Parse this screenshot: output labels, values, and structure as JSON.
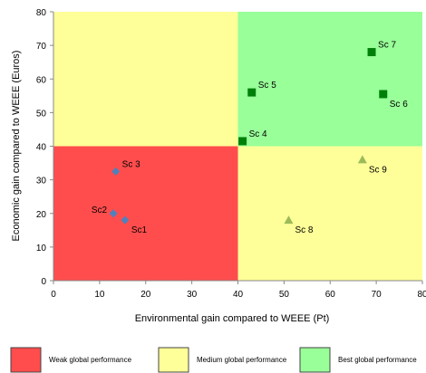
{
  "chart_data": {
    "type": "scatter",
    "title": "",
    "xlabel": "Environmental gain compared to WEEE (Pt)",
    "ylabel": "Economic gain compared to WEEE (Euros)",
    "xlim": [
      0,
      80
    ],
    "ylim": [
      0,
      80
    ],
    "x_ticks": [
      0,
      10,
      20,
      30,
      40,
      50,
      60,
      70,
      80
    ],
    "y_ticks": [
      0,
      10,
      20,
      30,
      40,
      50,
      60,
      70,
      80
    ],
    "grid": false,
    "regions": [
      {
        "name": "Weak global performance",
        "x": [
          0,
          40
        ],
        "y": [
          0,
          40
        ],
        "color": "#ff4d4d"
      },
      {
        "name": "Medium global performance",
        "x": [
          0,
          40
        ],
        "y": [
          40,
          80
        ],
        "color": "#ffff99"
      },
      {
        "name": "Medium global performance",
        "x": [
          40,
          80
        ],
        "y": [
          0,
          40
        ],
        "color": "#ffff99"
      },
      {
        "name": "Best global performance",
        "x": [
          40,
          80
        ],
        "y": [
          40,
          80
        ],
        "color": "#99ff99"
      }
    ],
    "legend": {
      "placement": "bottom",
      "entries": [
        {
          "label": "Weak global performance",
          "color": "#ff4d4d"
        },
        {
          "label": "Medium global performance",
          "color": "#ffff99"
        },
        {
          "label": "Best global performance",
          "color": "#99ff99"
        }
      ]
    },
    "points": [
      {
        "label": "Sc1",
        "x": 15.5,
        "y": 18,
        "marker": "diamond",
        "color": "#4f81bd",
        "label_pos": "below-right"
      },
      {
        "label": "Sc2",
        "x": 13,
        "y": 20,
        "marker": "diamond",
        "color": "#4f81bd",
        "label_pos": "left"
      },
      {
        "label": "Sc 3",
        "x": 13.5,
        "y": 32.5,
        "marker": "diamond",
        "color": "#4f81bd",
        "label_pos": "above-right"
      },
      {
        "label": "Sc 4",
        "x": 41,
        "y": 41.5,
        "marker": "square",
        "color": "#00800a",
        "label_pos": "above-right"
      },
      {
        "label": "Sc 5",
        "x": 43,
        "y": 56,
        "marker": "square",
        "color": "#00800a",
        "label_pos": "above-right"
      },
      {
        "label": "Sc 6",
        "x": 71.5,
        "y": 55.5,
        "marker": "square",
        "color": "#00800a",
        "label_pos": "below-right"
      },
      {
        "label": "Sc 7",
        "x": 69,
        "y": 68,
        "marker": "square",
        "color": "#00800a",
        "label_pos": "above-right"
      },
      {
        "label": "Sc 8",
        "x": 51,
        "y": 18,
        "marker": "triangle",
        "color": "#9bbb59",
        "label_pos": "below-right"
      },
      {
        "label": "Sc 9",
        "x": 67,
        "y": 36,
        "marker": "triangle",
        "color": "#9bbb59",
        "label_pos": "below-right"
      }
    ]
  }
}
